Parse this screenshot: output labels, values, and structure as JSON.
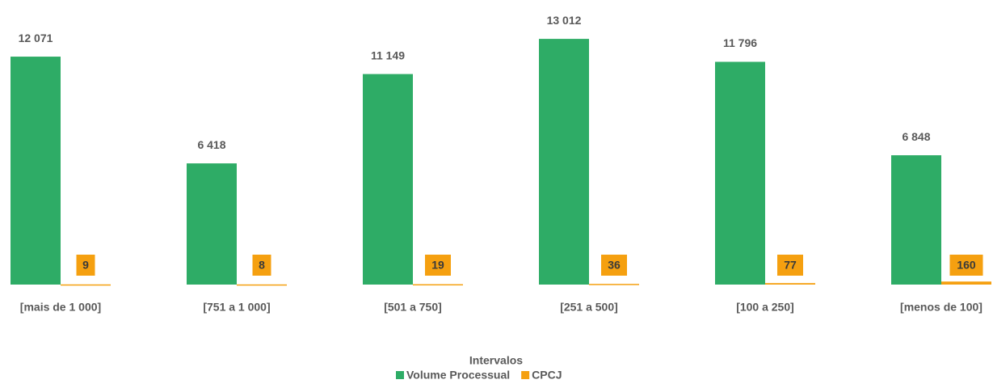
{
  "chart_data": {
    "type": "bar",
    "categories": [
      "[mais de 1 000]",
      "[751 a 1 000]",
      "[501 a 750]",
      "[251 a 500]",
      "[100 a 250]",
      "[menos de 100]"
    ],
    "x_label": "Intervalos",
    "series": [
      {
        "name": "Volume Processual",
        "color": "#2eac66",
        "values": [
          12071,
          6418,
          11149,
          13012,
          11796,
          6848
        ],
        "value_labels": [
          "12 071",
          "6 418",
          "11 149",
          "13 012",
          "11 796",
          "6 848"
        ]
      },
      {
        "name": "CPCJ",
        "color": "#f5a010",
        "values": [
          9,
          8,
          19,
          36,
          77,
          160
        ]
      }
    ],
    "ylim": [
      0,
      14000
    ],
    "legend": "bottom"
  }
}
